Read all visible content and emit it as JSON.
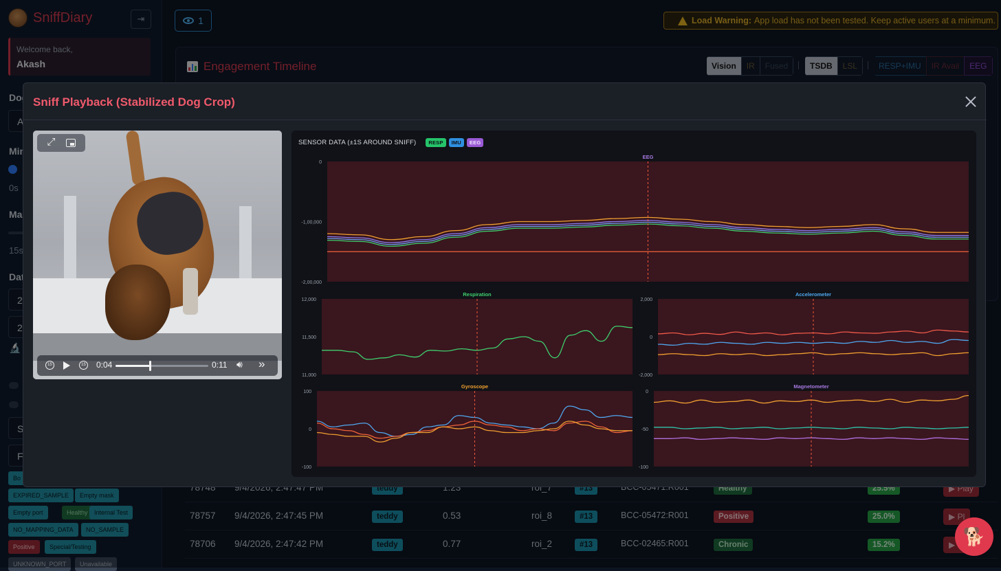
{
  "sidebar": {
    "brand": "SniffDiary",
    "welcome": "Welcome back,",
    "user": "Akash",
    "labels": {
      "dog": "Dog",
      "min": "Min",
      "min_value": "0s",
      "max": "Ma",
      "max_value": "15s",
      "date": "Dat",
      "date_box_1": "2",
      "date_box_2": "2",
      "filter_1": "S",
      "filter_2": "Fi"
    },
    "tags": [
      {
        "label": "Bo",
        "tone": "teal"
      },
      {
        "label": "EXPIRED_SAMPLE",
        "tone": "teal"
      },
      {
        "label": "Empty mask",
        "tone": "teal"
      },
      {
        "label": "Empty port",
        "tone": "teal"
      },
      {
        "label": "Healthy",
        "tone": "green"
      },
      {
        "label": "Internal Test",
        "tone": "teal"
      },
      {
        "label": "NO_MAPPING_DATA",
        "tone": "teal"
      },
      {
        "label": "NO_SAMPLE",
        "tone": "teal"
      },
      {
        "label": "Positive",
        "tone": "red"
      },
      {
        "label": "Special/Testing",
        "tone": "teal"
      },
      {
        "label": "UNKNOWN_PORT",
        "tone": "gray"
      },
      {
        "label": "Unavailable",
        "tone": "gray"
      }
    ]
  },
  "header": {
    "viewers": "1",
    "warning_strong": "Load Warning:",
    "warning_text": "App load has not been tested. Keep active users at a minimum."
  },
  "timeline": {
    "title": "Engagement Timeline",
    "group_mode": [
      "Vision",
      "IR",
      "Fused"
    ],
    "group_source": [
      "TSDB",
      "LSL"
    ],
    "group_sensor": [
      "RESP+IMU",
      "IR Avail",
      "EEG"
    ],
    "colors": {
      "accent": "#d23a4d"
    }
  },
  "table": {
    "rows": [
      {
        "id": "78748",
        "time": "9/4/2026, 2:47:47 PM",
        "dog": "teddy",
        "value": "1.23",
        "roi": "roi_7",
        "port": "#13",
        "code": "BCC-05471:R001",
        "status": "Healthy",
        "status_tone": "green",
        "pct": "25.5%",
        "action": "▶ Play"
      },
      {
        "id": "78757",
        "time": "9/4/2026, 2:47:45 PM",
        "dog": "teddy",
        "value": "0.53",
        "roi": "roi_8",
        "port": "#13",
        "code": "BCC-05472:R001",
        "status": "Positive",
        "status_tone": "red",
        "pct": "25.0%",
        "action": "▶ Pl"
      },
      {
        "id": "78706",
        "time": "9/4/2026, 2:47:42 PM",
        "dog": "teddy",
        "value": "0.77",
        "roi": "roi_2",
        "port": "#13",
        "code": "BCC-02465:R001",
        "status": "Chronic",
        "status_tone": "green",
        "pct": "15.2%",
        "action": "▶ P"
      }
    ]
  },
  "modal": {
    "title": "Sniff Playback (Stabilized Dog Crop)",
    "video": {
      "current_time": "0:04",
      "duration": "0:11",
      "progress": 0.37,
      "back_skip": "15",
      "fwd_skip": "15"
    },
    "sensor": {
      "title": "SENSOR DATA (±1S AROUND SNIFF)",
      "badges": [
        "RESP",
        "IMU",
        "EEG"
      ]
    }
  },
  "chart_data": [
    {
      "type": "line",
      "title": "EEG",
      "title_color": "#a878e0",
      "x": [
        -1.0,
        -0.9,
        -0.8,
        -0.7,
        -0.6,
        -0.5,
        -0.4,
        -0.3,
        -0.2,
        -0.1,
        0.0,
        0.1,
        0.2,
        0.3,
        0.4,
        0.5,
        0.6,
        0.7,
        0.8,
        0.9,
        1.0
      ],
      "ylim": [
        -200000,
        0
      ],
      "yticks": [
        "0",
        "-1,00,000",
        "-2,00,000"
      ],
      "series": [
        {
          "color": "#f0a030",
          "values": [
            -120000,
            -122000,
            -130000,
            -125000,
            -115000,
            -105000,
            -100000,
            -100000,
            -98000,
            -95000,
            -93000,
            -96000,
            -100000,
            -105000,
            -108000,
            -110000,
            -108000,
            -105000,
            -112000,
            -118000,
            -118000
          ]
        },
        {
          "color": "#8a7cf0",
          "values": [
            -125000,
            -127000,
            -135000,
            -130000,
            -120000,
            -110000,
            -105000,
            -105000,
            -103000,
            -100000,
            -98000,
            -101000,
            -105000,
            -110000,
            -113000,
            -115000,
            -113000,
            -110000,
            -117000,
            -123000,
            -123000
          ]
        },
        {
          "color": "#6aa0f0",
          "values": [
            -128000,
            -130000,
            -138000,
            -133000,
            -123000,
            -113000,
            -108000,
            -108000,
            -106000,
            -103000,
            -101000,
            -104000,
            -108000,
            -113000,
            -116000,
            -118000,
            -116000,
            -113000,
            -120000,
            -126000,
            -126000
          ]
        },
        {
          "color": "#3ecf6e",
          "values": [
            -131000,
            -133000,
            -141000,
            -136000,
            -126000,
            -116000,
            -111000,
            -111000,
            -109000,
            -106000,
            -104000,
            -107000,
            -111000,
            -116000,
            -119000,
            -121000,
            -119000,
            -116000,
            -123000,
            -129000,
            -129000
          ]
        },
        {
          "color": "#f0643a",
          "values": [
            -150000,
            -150000,
            -150000,
            -150000,
            -150000,
            -150000,
            -150000,
            -150000,
            -150000,
            -150000,
            -150000,
            -150000,
            -150000,
            -150000,
            -150000,
            -150000,
            -150000,
            -150000,
            -150000,
            -150000,
            -150000
          ]
        }
      ],
      "marker_x": 0.0
    },
    {
      "type": "line",
      "title": "Respiration",
      "title_color": "#3ecf6e",
      "x": [
        -1.0,
        -0.9,
        -0.8,
        -0.7,
        -0.6,
        -0.5,
        -0.4,
        -0.3,
        -0.2,
        -0.1,
        0.0,
        0.1,
        0.2,
        0.3,
        0.4,
        0.5,
        0.6,
        0.7,
        0.8,
        0.9,
        1.0
      ],
      "ylim": [
        11000,
        12000
      ],
      "yticks": [
        "12,000",
        "11,500",
        "11,000"
      ],
      "series": [
        {
          "color": "#3ecf6e",
          "values": [
            11320,
            11320,
            11300,
            11200,
            11220,
            11260,
            11230,
            11320,
            11310,
            11340,
            11320,
            11350,
            11470,
            11500,
            11440,
            11220,
            11520,
            11580,
            11440,
            11640,
            11620
          ]
        }
      ],
      "marker_x": 0.0
    },
    {
      "type": "line",
      "title": "Accelerometer",
      "title_color": "#4fa8f0",
      "x": [
        -1.0,
        -0.9,
        -0.8,
        -0.7,
        -0.6,
        -0.5,
        -0.4,
        -0.3,
        -0.2,
        -0.1,
        0.0,
        0.1,
        0.2,
        0.3,
        0.4,
        0.5,
        0.6,
        0.7,
        0.8,
        0.9,
        1.0
      ],
      "ylim": [
        -2000,
        2000
      ],
      "yticks": [
        "2,000",
        "0",
        "-2,000"
      ],
      "series": [
        {
          "color": "#f05a4a",
          "values": [
            150,
            200,
            100,
            180,
            120,
            250,
            150,
            200,
            100,
            180,
            200,
            150,
            250,
            200,
            180,
            250,
            300,
            200,
            350,
            300,
            250
          ]
        },
        {
          "color": "#4fa8f0",
          "values": [
            -400,
            -450,
            -350,
            -400,
            -300,
            -350,
            -400,
            -300,
            -350,
            -300,
            -350,
            -300,
            -350,
            -250,
            -300,
            -200,
            -300,
            -250,
            -350,
            -150,
            -200
          ]
        },
        {
          "color": "#f0a030",
          "values": [
            -950,
            -900,
            -950,
            -1000,
            -900,
            -950,
            -900,
            -1000,
            -950,
            -900,
            -850,
            -950,
            -900,
            -850,
            -900,
            -950,
            -900,
            -850,
            -1000,
            -900,
            -850
          ]
        }
      ],
      "marker_x": 0.0
    },
    {
      "type": "line",
      "title": "Gyroscope",
      "title_color": "#f0a030",
      "x": [
        -1.0,
        -0.9,
        -0.8,
        -0.7,
        -0.6,
        -0.5,
        -0.4,
        -0.3,
        -0.2,
        -0.1,
        0.0,
        0.1,
        0.2,
        0.3,
        0.4,
        0.5,
        0.6,
        0.7,
        0.8,
        0.9,
        1.0
      ],
      "ylim": [
        -100,
        100
      ],
      "yticks": [
        "100",
        "0",
        "-100"
      ],
      "series": [
        {
          "color": "#4fa8f0",
          "values": [
            20,
            5,
            10,
            15,
            -10,
            -20,
            -15,
            5,
            10,
            35,
            30,
            15,
            10,
            5,
            0,
            15,
            60,
            50,
            30,
            35,
            30
          ]
        },
        {
          "color": "#f0643a",
          "values": [
            15,
            0,
            -5,
            -15,
            -25,
            -20,
            -10,
            -5,
            5,
            10,
            20,
            10,
            5,
            -5,
            0,
            -5,
            15,
            20,
            5,
            -10,
            -5
          ]
        },
        {
          "color": "#f0a030",
          "values": [
            -10,
            -15,
            -20,
            -20,
            -35,
            -25,
            -10,
            -10,
            5,
            0,
            5,
            -5,
            -10,
            -10,
            -5,
            0,
            20,
            10,
            0,
            -5,
            -5
          ]
        }
      ],
      "marker_x": 0.0
    },
    {
      "type": "line",
      "title": "Magnetometer",
      "title_color": "#a878e0",
      "x": [
        -1.0,
        -0.9,
        -0.8,
        -0.7,
        -0.6,
        -0.5,
        -0.4,
        -0.3,
        -0.2,
        -0.1,
        0.0,
        0.1,
        0.2,
        0.3,
        0.4,
        0.5,
        0.6,
        0.7,
        0.8,
        0.9,
        1.0
      ],
      "ylim": [
        -100,
        0
      ],
      "yticks": [
        "0",
        "-50",
        "-100"
      ],
      "series": [
        {
          "color": "#f0a030",
          "values": [
            -15,
            -13,
            -16,
            -12,
            -15,
            -14,
            -12,
            -16,
            -13,
            -14,
            -12,
            -15,
            -13,
            -12,
            -14,
            -11,
            -15,
            -12,
            -13,
            -11,
            -6
          ]
        },
        {
          "color": "#2fc4a8",
          "values": [
            -48,
            -48,
            -50,
            -49,
            -48,
            -50,
            -49,
            -48,
            -50,
            -49,
            -48,
            -49,
            -50,
            -48,
            -49,
            -50,
            -48,
            -49,
            -50,
            -49,
            -48
          ]
        },
        {
          "color": "#b070e0",
          "values": [
            -63,
            -63,
            -62,
            -64,
            -63,
            -62,
            -63,
            -64,
            -62,
            -63,
            -62,
            -63,
            -64,
            -62,
            -63,
            -62,
            -63,
            -64,
            -62,
            -63,
            -64
          ]
        }
      ],
      "marker_x": 0.0
    }
  ]
}
